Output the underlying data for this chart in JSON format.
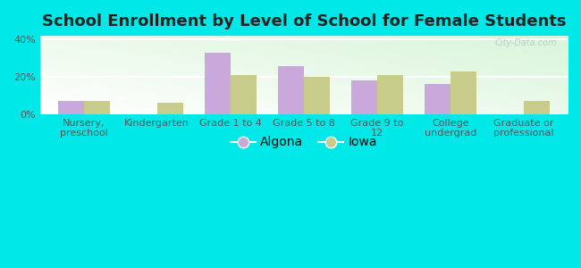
{
  "title": "School Enrollment by Level of School for Female Students",
  "categories": [
    "Nursery,\npreschool",
    "Kindergarten",
    "Grade 1 to 4",
    "Grade 5 to 8",
    "Grade 9 to\n12",
    "College\nundergrad",
    "Graduate or\nprofessional"
  ],
  "algona_values": [
    7,
    0,
    33,
    26,
    18,
    16,
    0
  ],
  "iowa_values": [
    7,
    6,
    21,
    20,
    21,
    23,
    7
  ],
  "algona_color": "#c9a8dc",
  "iowa_color": "#c8cc8a",
  "background_color": "#00e8e8",
  "plot_bg_topleft": "#d8f0d0",
  "plot_bg_bottomright": "#f8fff8",
  "yticks": [
    0,
    20,
    40
  ],
  "ylim": [
    0,
    42
  ],
  "legend_labels": [
    "Algona",
    "Iowa"
  ],
  "watermark": "City-Data.com",
  "title_fontsize": 13,
  "tick_fontsize": 8,
  "legend_fontsize": 10
}
